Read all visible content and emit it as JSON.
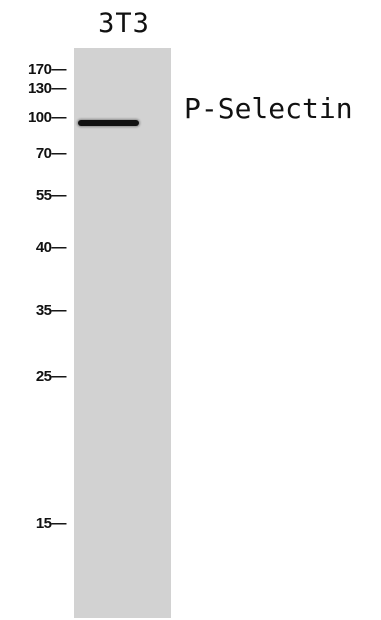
{
  "lane_label": "3T3",
  "protein_label": "P-Selectin",
  "markers": [
    "170—",
    "130—",
    "100—",
    "70—",
    "55—",
    "40—",
    "35—",
    "25—",
    "15—"
  ],
  "colors": {
    "lane": "#d2d2d2",
    "band": "#121212",
    "text": "#111111"
  }
}
